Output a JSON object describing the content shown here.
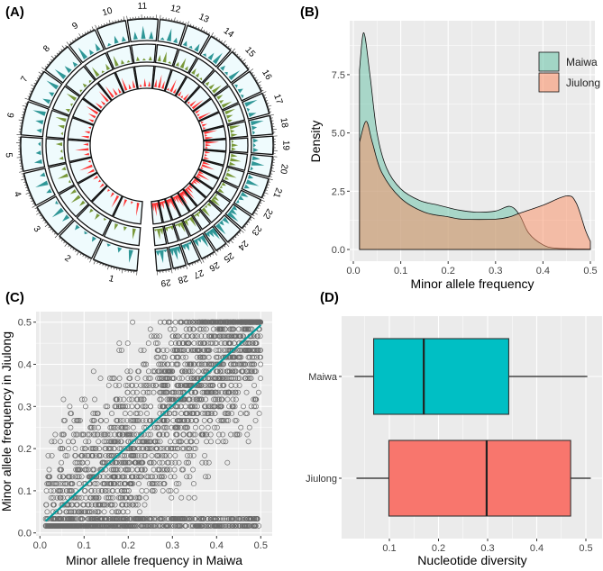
{
  "chart_data": [
    {
      "panel": "(A)",
      "type": "circos",
      "chromosomes": [
        "1",
        "2",
        "3",
        "4",
        "5",
        "6",
        "7",
        "8",
        "9",
        "10",
        "11",
        "12",
        "13",
        "14",
        "15",
        "16",
        "17",
        "18",
        "19",
        "20",
        "21",
        "22",
        "23",
        "24",
        "25",
        "26",
        "27",
        "28",
        "29"
      ],
      "length_mb": [
        158,
        137,
        121,
        120,
        121,
        119,
        112,
        113,
        105,
        104,
        107,
        91,
        84,
        84,
        85,
        81,
        75,
        66,
        64,
        72,
        71,
        61,
        52,
        62,
        43,
        51,
        45,
        46,
        51
      ],
      "track_colors": [
        "#1a8c8c",
        "#6b8e23",
        "#ff2020"
      ],
      "track_bg": "#effbfd"
    },
    {
      "panel": "(B)",
      "type": "area",
      "xlabel": "Minor allele frequency",
      "ylabel": "Density",
      "xlim": [
        -0.01,
        0.51
      ],
      "ylim": [
        -0.5,
        9.8
      ],
      "xticks": [
        "0.0",
        "0.1",
        "0.2",
        "0.3",
        "0.4",
        "0.5"
      ],
      "yticks": [
        "0.0",
        "2.5",
        "5.0",
        "7.5"
      ],
      "legend_position": "top-right",
      "series": [
        {
          "name": "Maiwa",
          "color": "#66c2a5",
          "x": [
            0.013,
            0.022,
            0.035,
            0.05,
            0.07,
            0.1,
            0.14,
            0.18,
            0.22,
            0.26,
            0.3,
            0.33,
            0.35,
            0.37,
            0.4,
            0.43,
            0.5
          ],
          "y": [
            7.7,
            9.3,
            7.5,
            5.0,
            3.5,
            2.6,
            2.1,
            1.9,
            1.7,
            1.6,
            1.65,
            1.85,
            1.5,
            0.7,
            0.2,
            0.05,
            0.02
          ]
        },
        {
          "name": "Jiulong",
          "color": "#fc8d62",
          "x": [
            0.013,
            0.027,
            0.04,
            0.06,
            0.1,
            0.15,
            0.2,
            0.23,
            0.3,
            0.33,
            0.35,
            0.4,
            0.45,
            0.47,
            0.49,
            0.5
          ],
          "y": [
            4.6,
            5.5,
            4.6,
            3.3,
            2.2,
            1.6,
            1.4,
            1.3,
            1.3,
            1.4,
            1.55,
            1.9,
            2.3,
            2.0,
            0.8,
            0.35
          ]
        }
      ]
    },
    {
      "panel": "(C)",
      "type": "scatter",
      "xlabel": "Minor allele frequency in Maiwa",
      "ylabel": "Minor allele frequency in Jiulong",
      "xlim": [
        -0.01,
        0.525
      ],
      "ylim": [
        -0.01,
        0.525
      ],
      "xticks": [
        "0.0",
        "0.1",
        "0.2",
        "0.3",
        "0.4",
        "0.5"
      ],
      "yticks": [
        "0.0",
        "0.1",
        "0.2",
        "0.3",
        "0.4",
        "0.5"
      ],
      "fit_line": {
        "color": "#009999",
        "x": [
          0.013,
          0.5
        ],
        "y": [
          0.028,
          0.493
        ]
      }
    },
    {
      "panel": "(D)",
      "type": "boxplot",
      "xlabel": "Nucleotide diversity",
      "xlim": [
        0.015,
        0.53
      ],
      "xticks": [
        "0.1",
        "0.2",
        "0.3",
        "0.4",
        "0.5"
      ],
      "series": [
        {
          "name": "Maiwa",
          "color": "#00bfc4",
          "min": 0.029,
          "q1": 0.068,
          "median": 0.17,
          "q3": 0.343,
          "max": 0.503
        },
        {
          "name": "Jiulong",
          "color": "#f8766d",
          "min": 0.033,
          "q1": 0.099,
          "median": 0.298,
          "q3": 0.469,
          "max": 0.51
        }
      ]
    }
  ]
}
